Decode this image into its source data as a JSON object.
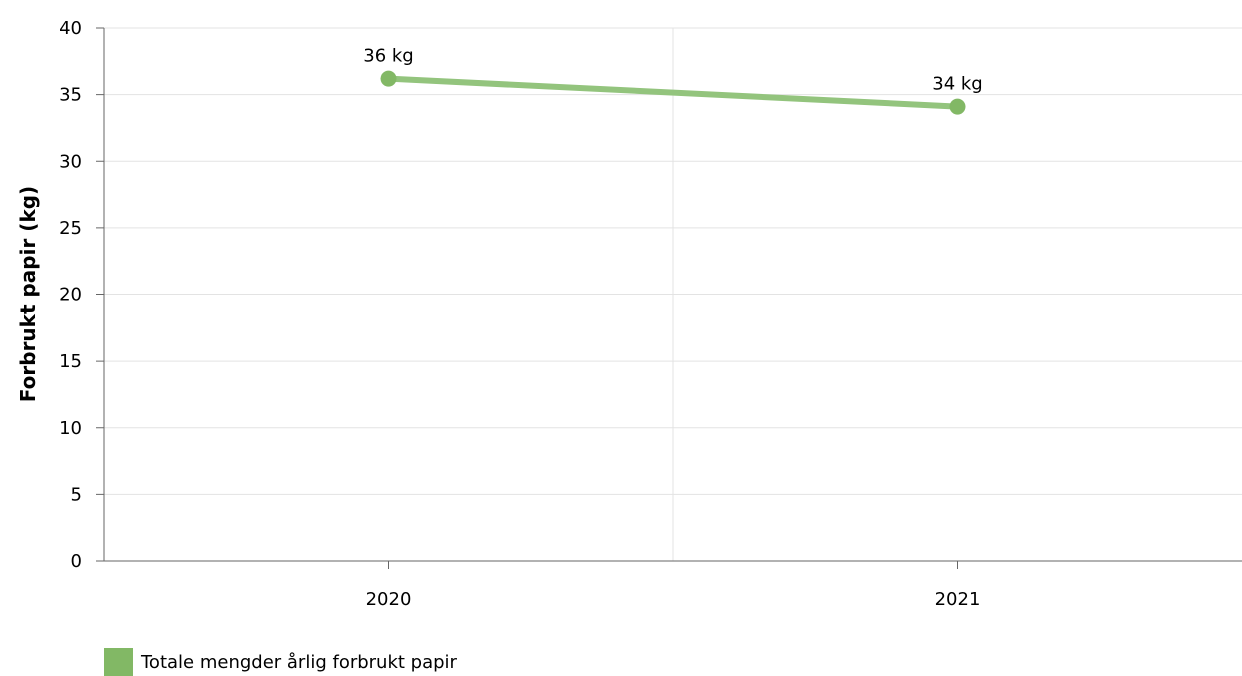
{
  "chart_data": {
    "type": "line",
    "title": "",
    "xlabel": "",
    "ylabel": "Forbrukt papir (kg)",
    "categories": [
      "2020",
      "2021"
    ],
    "ylim": [
      0,
      40
    ],
    "yticks": [
      0,
      5,
      10,
      15,
      20,
      25,
      30,
      35,
      40
    ],
    "grid": true,
    "legend_position": "bottom-left",
    "series": [
      {
        "name": "Totale mengder årlig forbrukt papir",
        "values": [
          36.2,
          34.1
        ],
        "data_labels": [
          "36 kg",
          "34 kg"
        ],
        "color": "#82b865",
        "line_color": "#93c47d"
      }
    ]
  },
  "colors": {
    "grid": "#e3e3e3",
    "axis": "#666666"
  }
}
